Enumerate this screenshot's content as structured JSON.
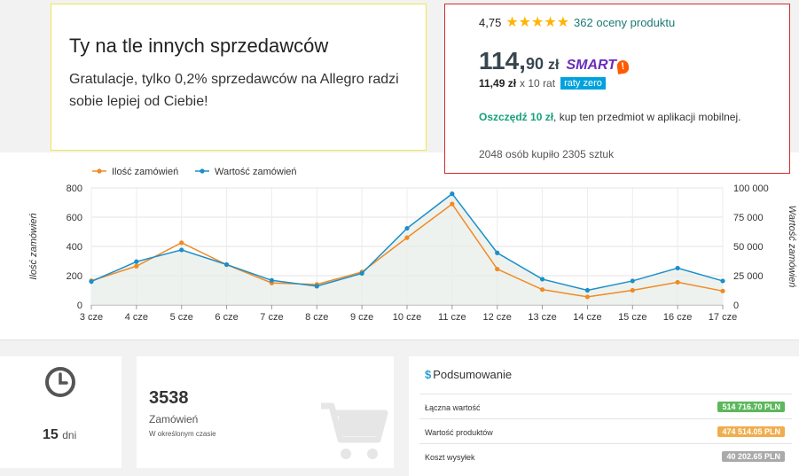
{
  "promo": {
    "title": "Ty na tle innych sprzedawców",
    "text": "Gratulacje, tylko 0,2% sprzedawców na Allegro radzi sobie lepiej od Ciebie!"
  },
  "product": {
    "rating": "4,75",
    "stars": "★★★★★",
    "reviews": "362 oceny produktu",
    "price_int": "114,",
    "price_frac": "90",
    "currency": "zł",
    "smart_label": "SMART",
    "smart_badge": "!",
    "installment_amount": "11,49 zł",
    "installment_rest": "x 10 rat",
    "installment_tag": "raty zero",
    "save_strong": "Oszczędź 10 zł",
    "save_rest": ", kup ten przedmiot w aplikacji mobilnej.",
    "sold": "2048 osób kupiło 2305 sztuk"
  },
  "stats": {
    "days_value": "15",
    "days_unit": "dni",
    "orders_value": "3538",
    "orders_label": "Zamówień",
    "orders_sub": "W określonym czasie",
    "summary_title": "Podsumowanie",
    "summary_icon": "$",
    "summary_rows": [
      {
        "label": "Łączna wartość",
        "value": "514 716.70 PLN",
        "color": "#5cb85c"
      },
      {
        "label": "Wartość produktów",
        "value": "474 514.05 PLN",
        "color": "#f0ad4e"
      },
      {
        "label": "Koszt wysyłek",
        "value": "40 202.65 PLN",
        "color": "#aaaaaa"
      }
    ]
  },
  "chart_data": {
    "type": "line",
    "categories": [
      "3 cze",
      "4 cze",
      "5 cze",
      "6 cze",
      "7 cze",
      "8 cze",
      "9 cze",
      "10 cze",
      "11 cze",
      "12 cze",
      "13 cze",
      "14 cze",
      "15 cze",
      "16 cze",
      "17 cze"
    ],
    "series": [
      {
        "name": "Ilość zamówień",
        "axis": "left",
        "color": "#f08a24",
        "values": [
          165,
          265,
          425,
          275,
          150,
          140,
          225,
          460,
          690,
          245,
          105,
          55,
          100,
          155,
          95
        ]
      },
      {
        "name": "Wartość zamówień",
        "axis": "right",
        "color": "#1a8fc9",
        "values": [
          20000,
          37000,
          47000,
          34500,
          21000,
          16000,
          27000,
          65500,
          95000,
          44500,
          22000,
          12500,
          20500,
          31500,
          20500
        ]
      }
    ],
    "ylabel": "Ilość zamówień",
    "y2label": "Wartość zamówień",
    "ylim": [
      0,
      800
    ],
    "y2lim": [
      0,
      100000
    ],
    "yticks": [
      "0",
      "200",
      "400",
      "600",
      "800"
    ],
    "y2ticks": [
      "0",
      "25 000",
      "50 000",
      "75 000",
      "100 000"
    ],
    "grid": true,
    "legend": "top-left"
  }
}
